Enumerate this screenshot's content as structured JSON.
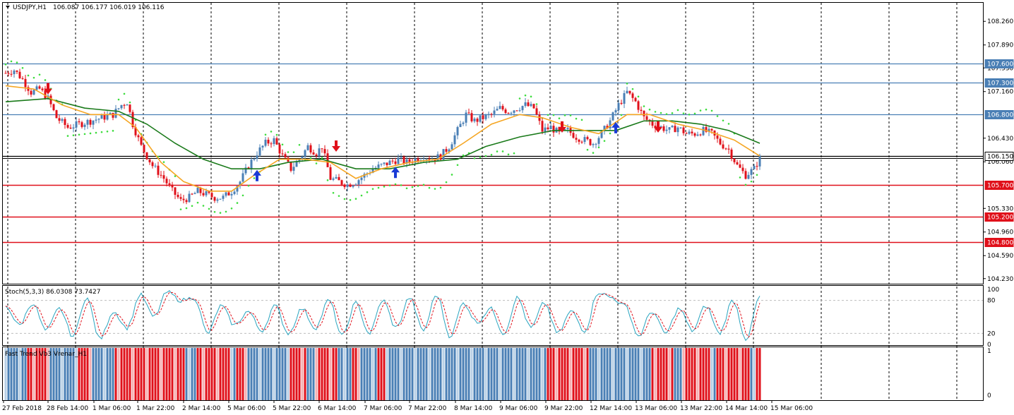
{
  "header": {
    "symbol": "USDJPY,H1",
    "ohlc": "106.087 106.177 106.019 106.116"
  },
  "stoch_label": "Stoch(5,3,3) 86.0308 73.7427",
  "fbv_label": "Fast Trend Vb3 Vrenar_H1",
  "colors": {
    "bull": "#4a7fb5",
    "bear": "#e0101a",
    "ma_fast": "#f5a623",
    "ma_slow": "#1a7a1a",
    "sar": "#3ddc3d",
    "blue_line": "#4a7fb5",
    "red_line": "#e0101a",
    "stoch_main": "#2aa5c0",
    "stoch_signal": "#e0101a"
  },
  "chart_data": {
    "type": "candlestick",
    "symbol": "USDJPY",
    "timeframe": "H1",
    "ylim": [
      104.15,
      108.55
    ],
    "price_ticks": [
      "108.260",
      "107.890",
      "107.530",
      "107.160",
      "106.430",
      "106.060",
      "105.330",
      "104.960",
      "104.590",
      "104.230"
    ],
    "time_labels": [
      "27 Feb 2018",
      "28 Feb 14:00",
      "1 Mar 06:00",
      "1 Mar 22:00",
      "2 Mar 14:00",
      "5 Mar 06:00",
      "5 Mar 22:00",
      "6 Mar 14:00",
      "7 Mar 06:00",
      "7 Mar 22:00",
      "8 Mar 14:00",
      "9 Mar 06:00",
      "9 Mar 22:00",
      "12 Mar 14:00",
      "13 Mar 06:00",
      "13 Mar 22:00",
      "14 Mar 14:00",
      "15 Mar 06:00"
    ],
    "levels": [
      {
        "value": 107.6,
        "label": "107.600",
        "color": "blue"
      },
      {
        "value": 107.3,
        "label": "107.300",
        "color": "blue"
      },
      {
        "value": 106.8,
        "label": "106.800",
        "color": "blue"
      },
      {
        "value": 106.15,
        "label": "106.150",
        "color": "black"
      },
      {
        "value": 105.7,
        "label": "105.700",
        "color": "red"
      },
      {
        "value": 105.2,
        "label": "105.200",
        "color": "red"
      },
      {
        "value": 104.8,
        "label": "104.800",
        "color": "red"
      }
    ],
    "price_path": [
      [
        0,
        107.45
      ],
      [
        3,
        107.5
      ],
      [
        6,
        107.35
      ],
      [
        9,
        107.15
      ],
      [
        12,
        107.2
      ],
      [
        15,
        107.05
      ],
      [
        18,
        106.75
      ],
      [
        22,
        106.6
      ],
      [
        26,
        106.65
      ],
      [
        30,
        106.7
      ],
      [
        34,
        106.75
      ],
      [
        38,
        106.8
      ],
      [
        41,
        106.95
      ],
      [
        43,
        107.0
      ],
      [
        45,
        106.65
      ],
      [
        48,
        106.3
      ],
      [
        52,
        106.0
      ],
      [
        56,
        105.8
      ],
      [
        59,
        105.6
      ],
      [
        62,
        105.45
      ],
      [
        65,
        105.5
      ],
      [
        68,
        105.6
      ],
      [
        71,
        105.55
      ],
      [
        74,
        105.5
      ],
      [
        77,
        105.5
      ],
      [
        80,
        105.6
      ],
      [
        83,
        105.75
      ],
      [
        86,
        106.0
      ],
      [
        89,
        106.2
      ],
      [
        92,
        106.35
      ],
      [
        95,
        106.4
      ],
      [
        98,
        106.15
      ],
      [
        101,
        105.95
      ],
      [
        104,
        106.1
      ],
      [
        107,
        106.3
      ],
      [
        110,
        106.2
      ],
      [
        112,
        106.3
      ],
      [
        115,
        105.8
      ],
      [
        118,
        105.75
      ],
      [
        121,
        105.7
      ],
      [
        124,
        105.75
      ],
      [
        127,
        105.85
      ],
      [
        130,
        105.95
      ],
      [
        133,
        106.0
      ],
      [
        136,
        106.05
      ],
      [
        139,
        106.1
      ],
      [
        142,
        106.05
      ],
      [
        145,
        106.1
      ],
      [
        148,
        106.15
      ],
      [
        151,
        106.1
      ],
      [
        154,
        106.15
      ],
      [
        157,
        106.3
      ],
      [
        160,
        106.55
      ],
      [
        163,
        106.8
      ],
      [
        166,
        106.7
      ],
      [
        169,
        106.75
      ],
      [
        172,
        106.8
      ],
      [
        175,
        106.9
      ],
      [
        178,
        106.85
      ],
      [
        181,
        106.9
      ],
      [
        184,
        106.95
      ],
      [
        187,
        106.9
      ],
      [
        190,
        106.55
      ],
      [
        193,
        106.6
      ],
      [
        196,
        106.5
      ],
      [
        199,
        106.55
      ],
      [
        202,
        106.45
      ],
      [
        205,
        106.4
      ],
      [
        208,
        106.35
      ],
      [
        211,
        106.5
      ],
      [
        214,
        106.7
      ],
      [
        217,
        106.95
      ],
      [
        220,
        107.15
      ],
      [
        223,
        107.0
      ],
      [
        226,
        106.75
      ],
      [
        229,
        106.65
      ],
      [
        232,
        106.6
      ],
      [
        235,
        106.55
      ],
      [
        238,
        106.6
      ],
      [
        241,
        106.5
      ],
      [
        244,
        106.5
      ],
      [
        247,
        106.55
      ],
      [
        250,
        106.5
      ],
      [
        253,
        106.35
      ],
      [
        256,
        106.25
      ],
      [
        259,
        106.0
      ],
      [
        262,
        105.85
      ],
      [
        265,
        105.95
      ],
      [
        267,
        106.12
      ]
    ],
    "ma_fast": [
      [
        0,
        107.25
      ],
      [
        10,
        107.2
      ],
      [
        20,
        106.95
      ],
      [
        30,
        106.8
      ],
      [
        40,
        106.8
      ],
      [
        46,
        106.6
      ],
      [
        55,
        106.05
      ],
      [
        63,
        105.75
      ],
      [
        72,
        105.6
      ],
      [
        80,
        105.6
      ],
      [
        88,
        105.85
      ],
      [
        97,
        106.1
      ],
      [
        106,
        106.1
      ],
      [
        115,
        106.05
      ],
      [
        124,
        105.8
      ],
      [
        133,
        105.95
      ],
      [
        143,
        106.05
      ],
      [
        153,
        106.1
      ],
      [
        162,
        106.35
      ],
      [
        172,
        106.65
      ],
      [
        182,
        106.8
      ],
      [
        190,
        106.75
      ],
      [
        200,
        106.6
      ],
      [
        210,
        106.5
      ],
      [
        220,
        106.8
      ],
      [
        228,
        106.8
      ],
      [
        238,
        106.65
      ],
      [
        248,
        106.55
      ],
      [
        258,
        106.4
      ],
      [
        267,
        106.15
      ]
    ],
    "ma_slow": [
      [
        0,
        107.0
      ],
      [
        15,
        107.05
      ],
      [
        28,
        106.9
      ],
      [
        40,
        106.85
      ],
      [
        50,
        106.65
      ],
      [
        60,
        106.35
      ],
      [
        70,
        106.1
      ],
      [
        80,
        105.95
      ],
      [
        90,
        105.95
      ],
      [
        100,
        106.05
      ],
      [
        112,
        106.1
      ],
      [
        124,
        105.95
      ],
      [
        136,
        105.95
      ],
      [
        148,
        106.05
      ],
      [
        160,
        106.1
      ],
      [
        170,
        106.3
      ],
      [
        182,
        106.45
      ],
      [
        194,
        106.55
      ],
      [
        206,
        106.55
      ],
      [
        216,
        106.55
      ],
      [
        226,
        106.7
      ],
      [
        236,
        106.7
      ],
      [
        246,
        106.65
      ],
      [
        256,
        106.55
      ],
      [
        267,
        106.35
      ]
    ],
    "arrows_up": [
      [
        89,
        105.8
      ],
      [
        138,
        105.85
      ],
      [
        216,
        106.55
      ]
    ],
    "arrows_down": [
      [
        15,
        107.25
      ],
      [
        117,
        106.35
      ],
      [
        197,
        106.65
      ],
      [
        231,
        106.65
      ]
    ],
    "stochastic": {
      "levels": [
        80,
        20
      ],
      "ticks": [
        "100",
        "80",
        "20",
        "0"
      ],
      "cycles": [
        70,
        35,
        75,
        25,
        65,
        15,
        85,
        10,
        60,
        30,
        90,
        50,
        95,
        80,
        85,
        20,
        70,
        35,
        60,
        25,
        70,
        20,
        65,
        30,
        80,
        15,
        75,
        20,
        80,
        30,
        85,
        25,
        90,
        15,
        75,
        40,
        65,
        20,
        85,
        30,
        75,
        20,
        60,
        25,
        95,
        85,
        70,
        15,
        60,
        20,
        65,
        25,
        70,
        20,
        80,
        10,
        86
      ]
    },
    "trend_blocks": {
      "ticks": [
        "1",
        "0"
      ],
      "segments": [
        [
          "bull",
          8
        ],
        [
          "bear",
          8
        ],
        [
          "bull",
          10
        ],
        [
          "bear",
          5
        ],
        [
          "bull",
          8
        ],
        [
          "bear",
          25
        ],
        [
          "bull",
          4
        ],
        [
          "bear",
          12
        ],
        [
          "bull",
          2
        ],
        [
          "bear",
          4
        ],
        [
          "bull",
          15
        ],
        [
          "bear",
          6
        ],
        [
          "bull",
          3
        ],
        [
          "bear",
          8
        ],
        [
          "bull",
          5
        ],
        [
          "bear",
          3
        ],
        [
          "bull",
          6
        ],
        [
          "bear",
          3
        ],
        [
          "bull",
          10
        ],
        [
          "bull",
          5
        ],
        [
          "bull",
          30
        ],
        [
          "bull",
          12
        ],
        [
          "bear",
          15
        ],
        [
          "bull",
          10
        ],
        [
          "bull",
          12
        ],
        [
          "bear",
          8
        ],
        [
          "bull",
          3
        ],
        [
          "bear",
          10
        ],
        [
          "bull",
          2
        ],
        [
          "bear",
          12
        ],
        [
          "bull",
          2
        ],
        [
          "bear",
          8
        ],
        [
          "bull",
          3
        ]
      ]
    }
  }
}
